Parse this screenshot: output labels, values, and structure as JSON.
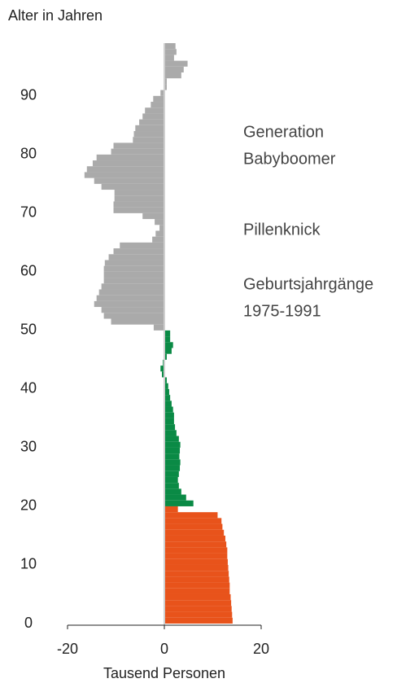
{
  "chart_data": {
    "type": "bar",
    "orientation": "horizontal",
    "ylabel": "Alter in Jahren",
    "xlabel": "Tausend Personen",
    "xlim": [
      -20,
      20
    ],
    "xticks": [
      -20,
      0,
      20
    ],
    "ylim": [
      0,
      99
    ],
    "yticks": [
      0,
      10,
      20,
      30,
      40,
      50,
      60,
      70,
      80,
      90
    ],
    "annotations": [
      {
        "lines": [
          "Generation",
          "Babyboomer"
        ]
      },
      {
        "lines": [
          "Pillenknick"
        ]
      },
      {
        "lines": [
          "Geburtsjahrgänge",
          "1975-1991"
        ]
      }
    ],
    "series": [
      {
        "color": "#e8531b",
        "y": [
          0,
          1,
          2,
          3,
          4,
          5,
          6,
          7,
          8,
          9,
          10,
          11,
          12,
          13,
          14,
          15,
          16,
          17,
          18,
          19
        ],
        "values": [
          14.1,
          14,
          13.9,
          13.8,
          13.7,
          13.5,
          13.5,
          13.4,
          13.3,
          13.2,
          13.1,
          13,
          13,
          12.8,
          12.6,
          12.3,
          12,
          11.8,
          11,
          2.8
        ]
      },
      {
        "color": "#0a8a45",
        "y": [
          20,
          21,
          22,
          23,
          24,
          25,
          26,
          27,
          28,
          29,
          30,
          31,
          32,
          33,
          34,
          35,
          36,
          37,
          38,
          39,
          40,
          41,
          42,
          43,
          44,
          45,
          46,
          47,
          48,
          49
        ],
        "values": [
          6,
          4.5,
          3.5,
          3,
          2.8,
          3,
          3.2,
          3.3,
          3.1,
          3.2,
          3.3,
          3,
          2.5,
          2.2,
          2,
          2,
          1.8,
          1.5,
          1.2,
          1,
          0.8,
          0.5,
          -0.5,
          -0.8,
          -0.3,
          0.5,
          1.5,
          1.8,
          1.2,
          1.2
        ]
      },
      {
        "color": "#aaaaaa",
        "y": [
          50,
          51,
          52,
          53,
          54,
          55,
          56,
          57,
          58,
          59,
          60,
          61,
          62,
          63,
          64,
          65,
          66,
          67,
          68,
          69,
          70,
          71,
          72,
          73,
          74,
          75,
          76,
          77,
          78,
          79,
          80,
          81,
          82,
          83,
          84,
          85,
          86,
          87,
          88,
          89,
          90,
          91,
          92,
          93,
          94,
          95,
          96,
          97,
          98
        ],
        "values": [
          -2.2,
          -11,
          -12.5,
          -13,
          -14.5,
          -14,
          -13.5,
          -13,
          -12.5,
          -12.5,
          -12.5,
          -12.3,
          -11.5,
          -10.5,
          -9.2,
          -2.5,
          -1.8,
          -1,
          -2,
          -4.5,
          -10.5,
          -10.5,
          -10.3,
          -10.3,
          -13,
          -14.5,
          -16.5,
          -16,
          -14.8,
          -14,
          -11,
          -10.5,
          -6.5,
          -6.3,
          -6,
          -5.2,
          -4.5,
          -4,
          -2.8,
          -2.3,
          -0.8,
          0.5,
          0.5,
          3.5,
          4,
          4.8,
          2,
          2.5,
          2.3
        ]
      }
    ]
  }
}
